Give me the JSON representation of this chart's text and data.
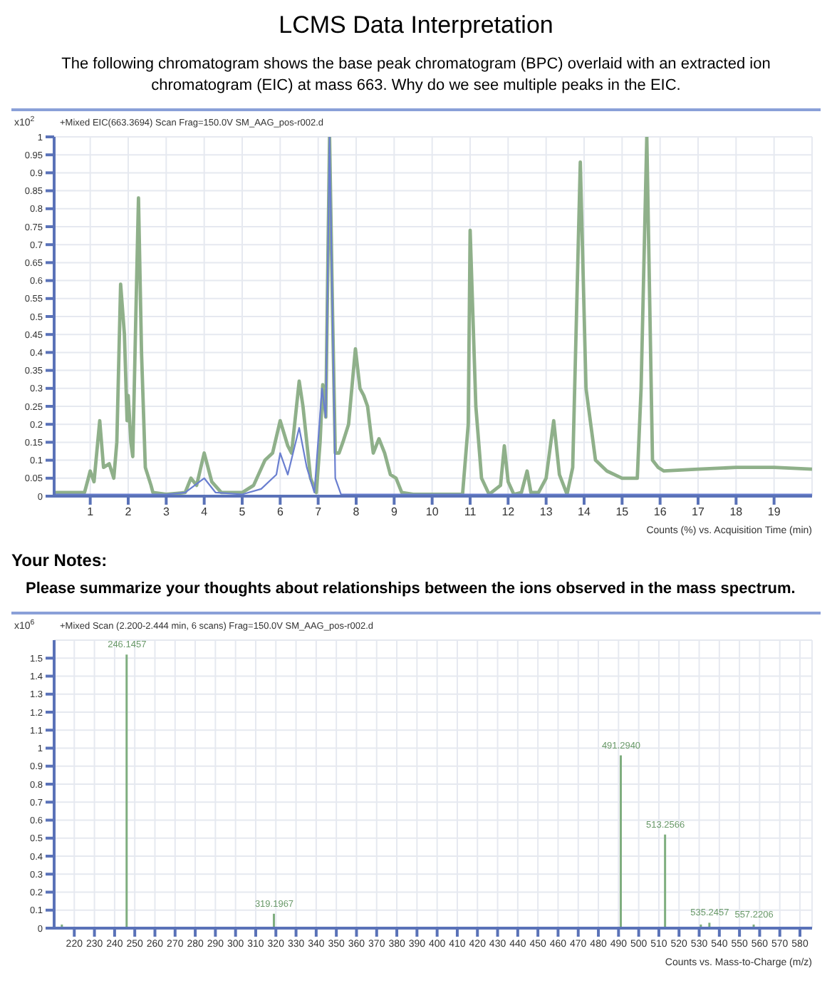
{
  "chart_data": [
    {
      "type": "line",
      "title": "LCMS Data Interpretation",
      "subtitle": "The following chromatogram shows the base peak chromatogram (BPC) overlaid with an extracted ion chromatogram (EIC) at mass 663. Why do we see multiple peaks in the EIC.",
      "annotations": [
        "+Mixed EIC(663.3694) Scan Frag=150.0V SM_AAG_pos-r002.d"
      ],
      "xlabel": "Counts (%) vs. Acquisition Time (min)",
      "ylabel": "x10$^{2}$",
      "series": [
        {
          "color": "#8fb08a",
          "x": [
            0.05,
            0.5,
            0.85,
            0.95,
            1.0,
            1.1,
            1.25,
            1.35,
            1.5,
            1.62,
            1.7,
            1.8,
            1.9,
            1.97,
            2.0,
            2.07,
            2.12,
            2.2,
            2.27,
            2.35,
            2.45,
            2.6,
            2.65,
            3,
            3.5,
            3.65,
            3.8,
            4.0,
            4.2,
            4.45,
            4.6,
            5.0,
            5.3,
            5.6,
            5.8,
            6.0,
            6.2,
            6.3,
            6.5,
            6.6,
            6.8,
            6.95,
            7.05,
            7.12,
            7.2,
            7.3,
            7.38,
            7.45,
            7.55,
            7.65,
            7.8,
            7.98,
            8.1,
            8.2,
            8.3,
            8.45,
            8.6,
            8.75,
            8.9,
            9.05,
            9.2,
            9.5,
            10.0,
            10.8,
            10.95,
            11.0,
            11.15,
            11.3,
            11.5,
            11.8,
            11.9,
            12.0,
            12.15,
            12.35,
            12.5,
            12.6,
            12.8,
            13.0,
            13.2,
            13.35,
            13.55,
            13.7,
            13.9,
            14.05,
            14.3,
            14.6,
            15.0,
            15.4,
            15.5,
            15.65,
            15.8,
            15.95,
            16.1,
            17,
            18,
            19,
            20
          ],
          "values": [
            0.01,
            0.01,
            0.01,
            0.05,
            0.07,
            0.04,
            0.21,
            0.08,
            0.09,
            0.05,
            0.15,
            0.59,
            0.45,
            0.21,
            0.28,
            0.15,
            0.11,
            0.5,
            0.83,
            0.4,
            0.08,
            0.03,
            0.01,
            0.005,
            0.01,
            0.05,
            0.03,
            0.12,
            0.04,
            0.01,
            0.01,
            0.01,
            0.03,
            0.1,
            0.12,
            0.21,
            0.14,
            0.12,
            0.32,
            0.25,
            0.05,
            0.01,
            0.15,
            0.31,
            0.22,
            1.0,
            0.5,
            0.12,
            0.12,
            0.15,
            0.2,
            0.41,
            0.3,
            0.28,
            0.25,
            0.12,
            0.16,
            0.12,
            0.06,
            0.05,
            0.01,
            0.005,
            0.005,
            0.005,
            0.2,
            0.74,
            0.25,
            0.05,
            0.005,
            0.03,
            0.14,
            0.04,
            0.005,
            0.01,
            0.07,
            0.01,
            0.01,
            0.05,
            0.21,
            0.06,
            0.005,
            0.08,
            0.93,
            0.3,
            0.1,
            0.07,
            0.05,
            0.05,
            0.3,
            1.0,
            0.1,
            0.08,
            0.07,
            0.075,
            0.08,
            0.08,
            0.075
          ]
        },
        {
          "color": "#6a7fd0",
          "x": [
            0.05,
            2.5,
            3.0,
            3.5,
            4.0,
            4.3,
            5,
            5.5,
            5.9,
            6.0,
            6.2,
            6.5,
            6.7,
            6.9,
            7.1,
            7.2,
            7.3,
            7.45,
            7.6,
            20
          ],
          "values": [
            0.005,
            0.005,
            0.005,
            0.01,
            0.05,
            0.01,
            0.005,
            0.02,
            0.06,
            0.12,
            0.06,
            0.19,
            0.08,
            0.01,
            0.3,
            0.22,
            1.0,
            0.05,
            0.005,
            0.005
          ]
        }
      ],
      "xlim": [
        0.05,
        20
      ],
      "xticks": [
        1,
        2,
        3,
        4,
        5,
        6,
        7,
        8,
        9,
        10,
        11,
        12,
        13,
        14,
        15,
        16,
        17,
        18,
        19
      ],
      "ylim": [
        0,
        1
      ],
      "yticks": [
        0,
        0.05,
        0.1,
        0.15,
        0.2,
        0.25,
        0.3,
        0.35,
        0.4,
        0.45,
        0.5,
        0.55,
        0.6,
        0.65,
        0.7,
        0.75,
        0.8,
        0.85,
        0.9,
        0.95,
        1
      ],
      "grid": true,
      "marker": "none",
      "line_style": "solid"
    },
    {
      "type": "bar",
      "title": "Your Notes:",
      "subtitle": "Please summarize your thoughts about relationships between the ions observed in the mass spectrum.",
      "annotations": [
        "+Mixed Scan (2.200-2.444 min, 6 scans) Frag=150.0V SM_AAG_pos-r002.d",
        {
          "text": "246.1457",
          "x": 246.1457,
          "y": 1.52
        },
        {
          "text": "319.1967",
          "x": 319.1967,
          "y": 0.08
        },
        {
          "text": "491.2940",
          "x": 491.294,
          "y": 0.96
        },
        {
          "text": "513.2566",
          "x": 513.2566,
          "y": 0.52
        },
        {
          "text": "535.2457",
          "x": 535.2457,
          "y": 0.03
        },
        {
          "text": "557.2206",
          "x": 557.2206,
          "y": 0.02
        }
      ],
      "xlabel": "Counts vs. Mass-to-Charge (m/z)",
      "ylabel": "x10$^{6}$",
      "x": [
        214,
        246.1457,
        319.1967,
        491.294,
        513.2566,
        531,
        535.2457,
        557.2206
      ],
      "values": [
        0.02,
        1.52,
        0.08,
        0.96,
        0.52,
        0.02,
        0.03,
        0.02
      ],
      "color": "#7fae7f",
      "xlim": [
        210,
        586
      ],
      "xticks": [
        220,
        230,
        240,
        250,
        260,
        270,
        280,
        290,
        300,
        310,
        320,
        330,
        340,
        350,
        360,
        370,
        380,
        390,
        400,
        410,
        420,
        430,
        440,
        450,
        460,
        470,
        480,
        490,
        500,
        510,
        520,
        530,
        540,
        550,
        560,
        570,
        580
      ],
      "ylim": [
        0,
        1.6
      ],
      "yticks": [
        0,
        0.1,
        0.2,
        0.3,
        0.4,
        0.5,
        0.6,
        0.7,
        0.8,
        0.9,
        1,
        1.1,
        1.2,
        1.3,
        1.4,
        1.5
      ],
      "grid": true
    }
  ]
}
